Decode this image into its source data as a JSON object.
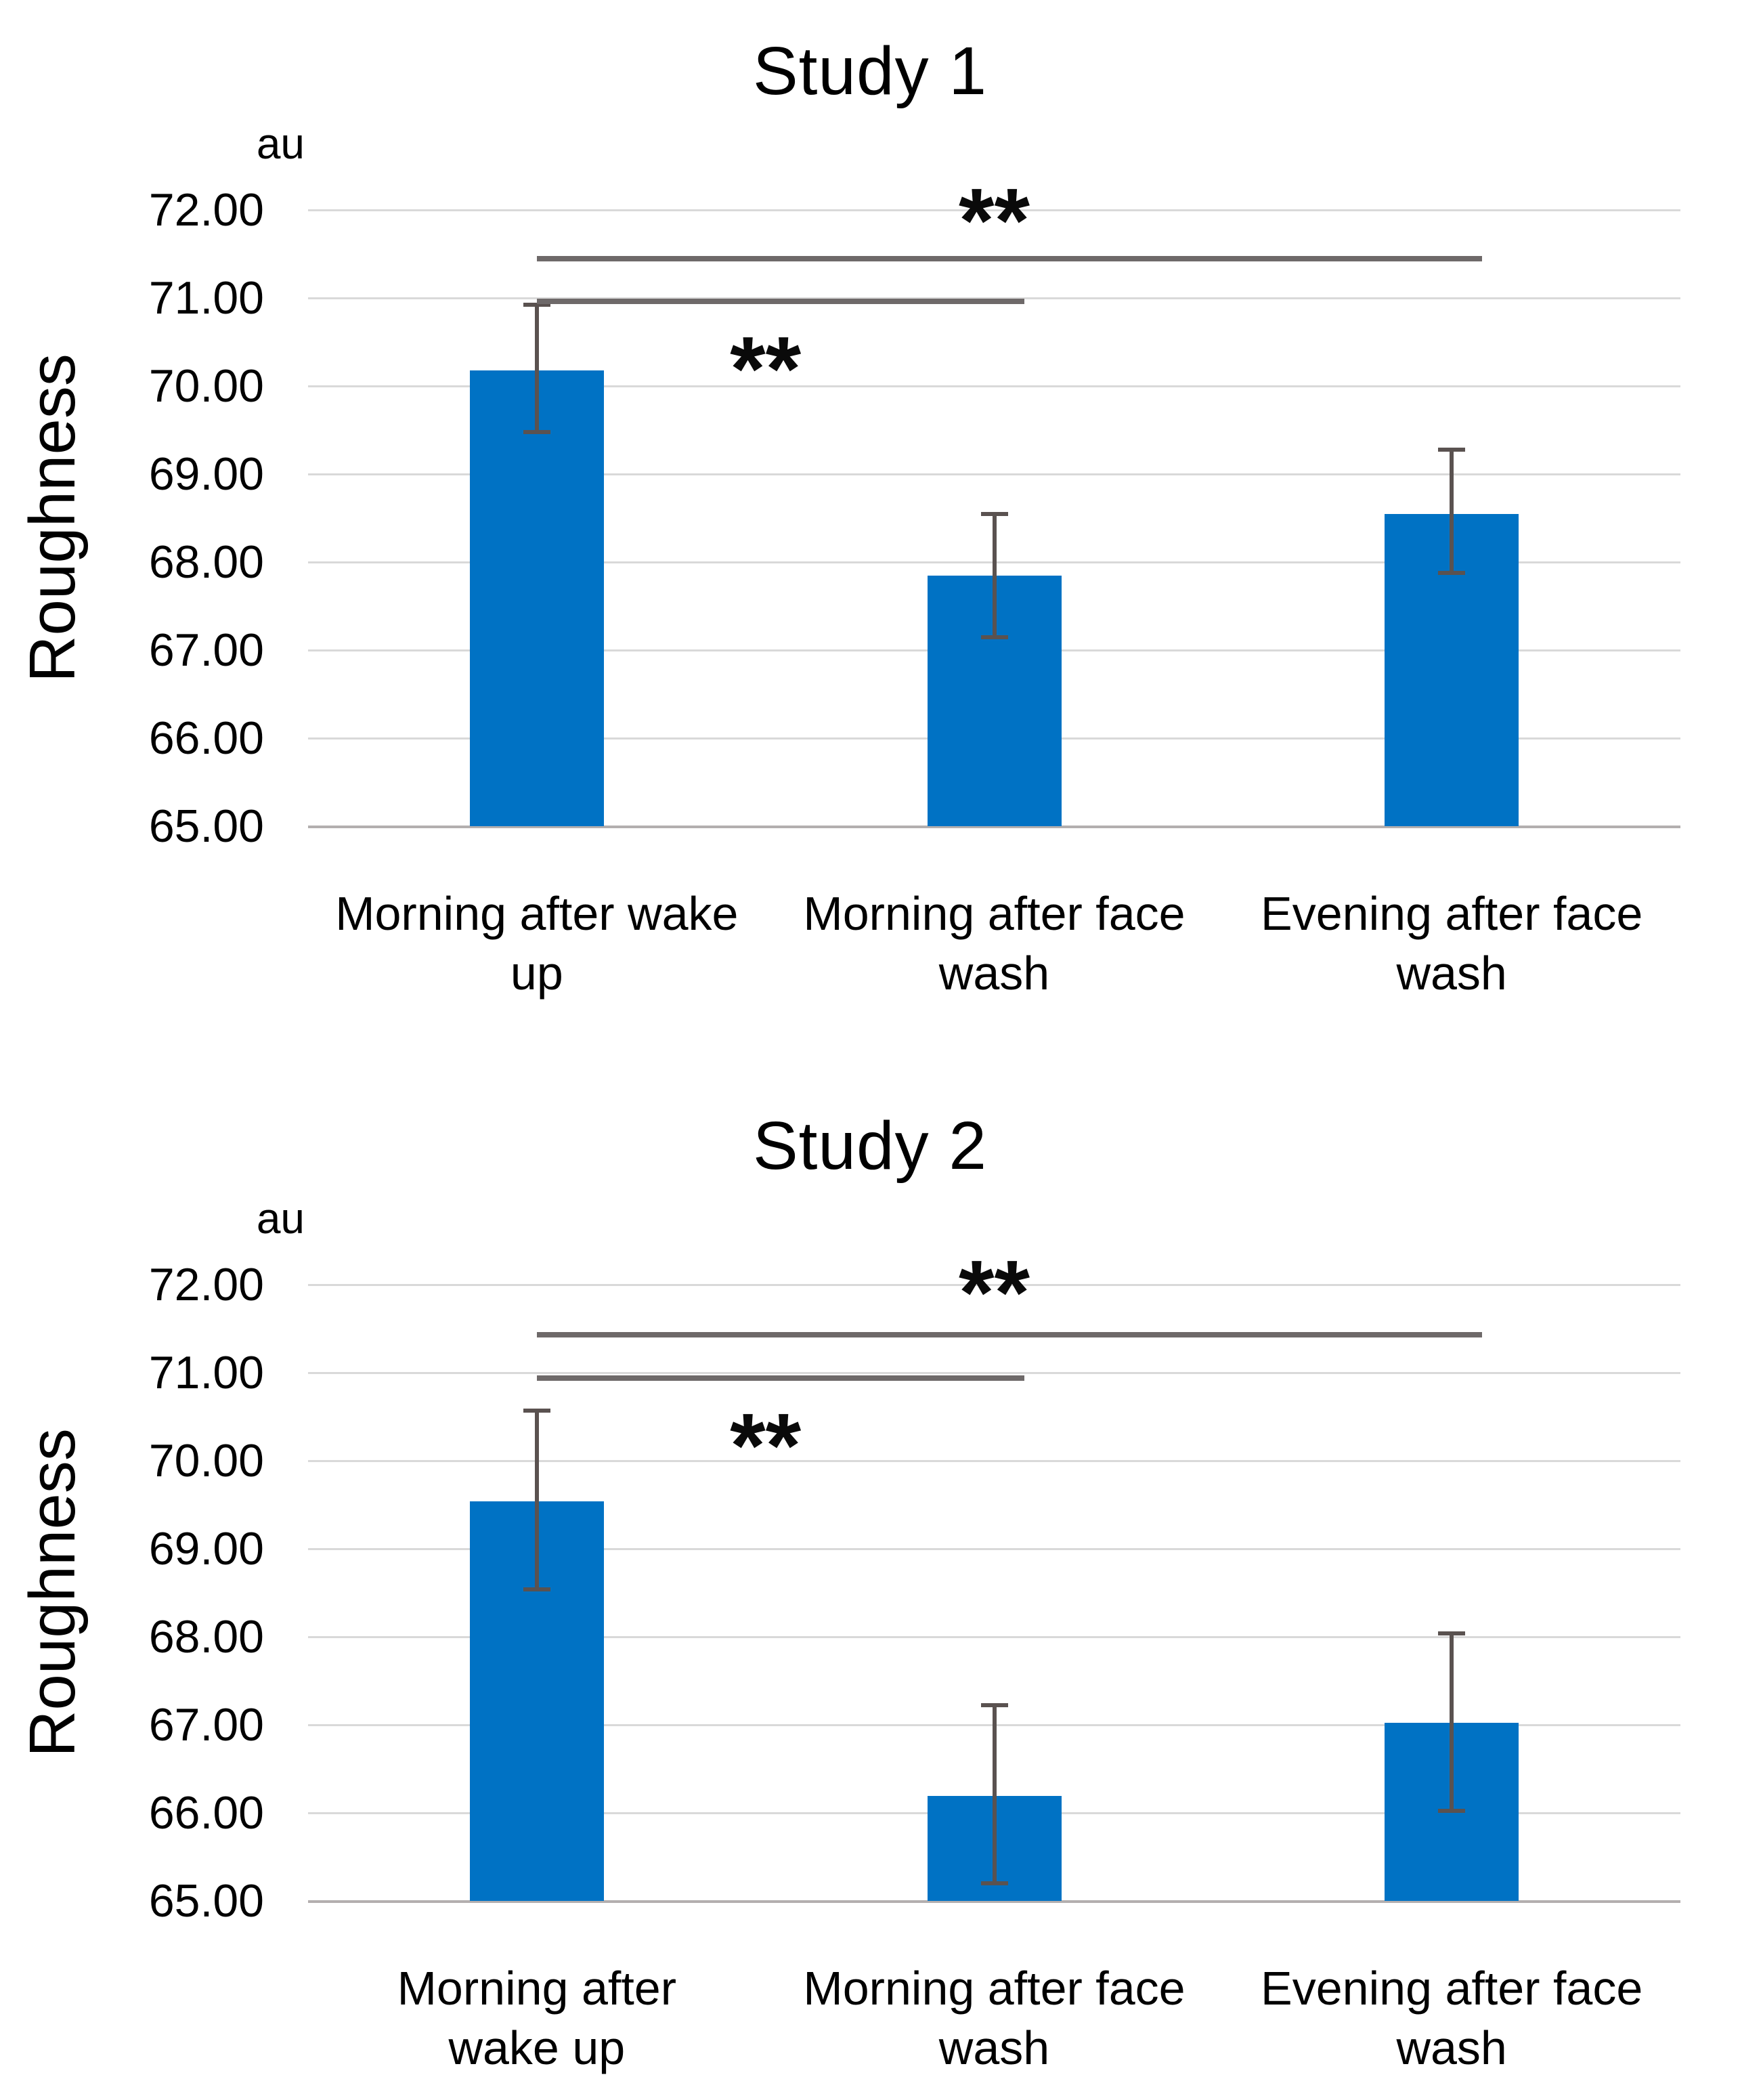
{
  "figure": {
    "background": "#ffffff",
    "description_visible_text_only": true
  },
  "colors": {
    "bar_fill": "#0072C4",
    "error_bar": "#5a5250",
    "significance_line": "#6e6969",
    "gridline": "#d9d9d9",
    "axis_line": "#b3afaf",
    "text": "#000000",
    "stars": "#0a0a0a"
  },
  "chart_data": [
    {
      "type": "bar",
      "title": "Study 1",
      "unit_label": "au",
      "ylabel": "Roughness",
      "xlabel": "",
      "ylim": [
        65,
        72
      ],
      "grid": true,
      "legend": "none",
      "yticks": [
        "72.00",
        "71.00",
        "70.00",
        "69.00",
        "68.00",
        "67.00",
        "66.00",
        "65.00"
      ],
      "categories": [
        "Morning after wake up",
        "Morning after face wash",
        "Evening after face wash"
      ],
      "categories_wrapped": [
        "Morning after wake\nup",
        "Morning after face\nwash",
        "Evening after face\nwash"
      ],
      "values": [
        70.18,
        67.85,
        68.55
      ],
      "error_low": [
        69.48,
        67.15,
        67.88
      ],
      "error_high": [
        70.92,
        68.55,
        69.28
      ],
      "significance": [
        {
          "label": "**",
          "bar_from": 0,
          "bar_to": 2,
          "line_y": 71.45,
          "label_y": 72.05,
          "label_pos": "above"
        },
        {
          "label": "**",
          "bar_from": 0,
          "bar_to": 1,
          "line_y": 70.96,
          "label_y": 70.36,
          "label_pos": "below"
        }
      ]
    },
    {
      "type": "bar",
      "title": "Study 2",
      "unit_label": "au",
      "ylabel": "Roughness",
      "xlabel": "",
      "ylim": [
        65,
        72
      ],
      "grid": true,
      "legend": "none",
      "yticks": [
        "72.00",
        "71.00",
        "70.00",
        "69.00",
        "68.00",
        "67.00",
        "66.00",
        "65.00"
      ],
      "categories": [
        "Morning after wake up",
        "Morning after face wash",
        "Evening after face wash"
      ],
      "categories_wrapped": [
        "Morning after\nwake up",
        "Morning after face\nwash",
        "Evening after face\nwash"
      ],
      "values": [
        69.54,
        66.19,
        67.02
      ],
      "error_low": [
        68.54,
        65.2,
        66.02
      ],
      "error_high": [
        70.57,
        67.22,
        68.04
      ],
      "significance": [
        {
          "label": "**",
          "bar_from": 0,
          "bar_to": 2,
          "line_y": 71.43,
          "label_y": 72.08,
          "label_pos": "above"
        },
        {
          "label": "**",
          "bar_from": 0,
          "bar_to": 1,
          "line_y": 70.94,
          "label_y": 70.34,
          "label_pos": "below"
        }
      ]
    }
  ]
}
